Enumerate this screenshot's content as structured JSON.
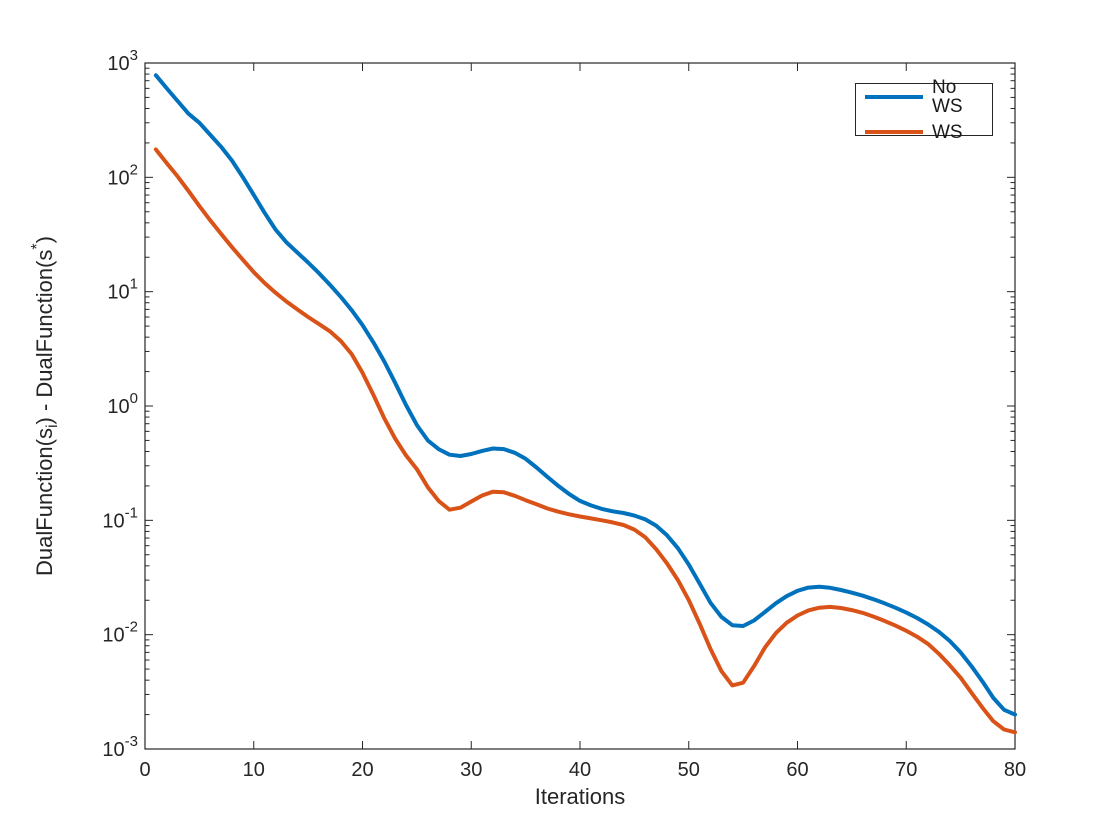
{
  "figure": {
    "background": "#ffffff"
  },
  "chart_data": {
    "type": "line",
    "title": "",
    "xlabel": "Iterations",
    "ylabel_plain": "DualFunction(s_i) - DualFunction(s*)",
    "ylabel_parts": [
      {
        "t": "DualFunction(s",
        "style": "normal"
      },
      {
        "t": "i",
        "style": "sub"
      },
      {
        "t": ") - DualFunction(s",
        "style": "normal"
      },
      {
        "t": "*",
        "style": "sup"
      },
      {
        "t": ")",
        "style": "normal"
      }
    ],
    "xlim": [
      0,
      80
    ],
    "xticks": [
      0,
      10,
      20,
      30,
      40,
      50,
      60,
      70,
      80
    ],
    "yscale": "log",
    "ylim": [
      0.001,
      1000
    ],
    "ytick_exponents": [
      3,
      2,
      1,
      0,
      -1,
      -2,
      -3
    ],
    "grid": false,
    "axis_color": "#262626",
    "line_width": 4,
    "legend": {
      "position": "northeast",
      "items": [
        {
          "label": "No WS",
          "color": "#0072BD"
        },
        {
          "label": "WS",
          "color": "#D95319"
        }
      ]
    },
    "x": [
      1,
      2,
      3,
      4,
      5,
      6,
      7,
      8,
      9,
      10,
      11,
      12,
      13,
      14,
      15,
      16,
      17,
      18,
      19,
      20,
      21,
      22,
      23,
      24,
      25,
      26,
      27,
      28,
      29,
      30,
      31,
      32,
      33,
      34,
      35,
      36,
      37,
      38,
      39,
      40,
      41,
      42,
      43,
      44,
      45,
      46,
      47,
      48,
      49,
      50,
      51,
      52,
      53,
      54,
      55,
      56,
      57,
      58,
      59,
      60,
      61,
      62,
      63,
      64,
      65,
      66,
      67,
      68,
      69,
      70,
      71,
      72,
      73,
      74,
      75,
      76,
      77,
      78,
      79,
      80
    ],
    "series": [
      {
        "name": "No WS",
        "color": "#0072BD",
        "values": [
          780,
          600,
          465,
          360,
          300,
          235,
          185,
          140,
          100,
          70,
          49,
          35,
          27,
          22,
          18,
          14.5,
          11.5,
          9.0,
          6.9,
          5.1,
          3.6,
          2.45,
          1.6,
          1.02,
          0.68,
          0.5,
          0.42,
          0.375,
          0.365,
          0.38,
          0.405,
          0.425,
          0.42,
          0.39,
          0.345,
          0.29,
          0.24,
          0.2,
          0.17,
          0.148,
          0.135,
          0.126,
          0.12,
          0.116,
          0.11,
          0.102,
          0.09,
          0.074,
          0.057,
          0.041,
          0.028,
          0.019,
          0.0143,
          0.0121,
          0.0119,
          0.0133,
          0.0158,
          0.0188,
          0.0217,
          0.0242,
          0.0258,
          0.0263,
          0.0257,
          0.0246,
          0.0233,
          0.0219,
          0.0204,
          0.0188,
          0.0172,
          0.0156,
          0.014,
          0.0123,
          0.0106,
          0.0088,
          0.007,
          0.0053,
          0.0039,
          0.0028,
          0.0022,
          0.002
        ]
      },
      {
        "name": "WS",
        "color": "#D95319",
        "values": [
          175,
          133,
          102,
          76,
          56,
          42,
          32,
          24.5,
          19,
          14.8,
          11.9,
          9.8,
          8.2,
          7.0,
          6.0,
          5.2,
          4.5,
          3.7,
          2.85,
          1.95,
          1.25,
          0.78,
          0.52,
          0.37,
          0.28,
          0.195,
          0.148,
          0.124,
          0.129,
          0.146,
          0.165,
          0.178,
          0.176,
          0.164,
          0.15,
          0.138,
          0.127,
          0.119,
          0.113,
          0.108,
          0.104,
          0.1,
          0.096,
          0.091,
          0.083,
          0.071,
          0.056,
          0.042,
          0.03,
          0.02,
          0.0125,
          0.0075,
          0.0048,
          0.0036,
          0.0038,
          0.0053,
          0.0077,
          0.0103,
          0.0127,
          0.0147,
          0.0163,
          0.0172,
          0.0175,
          0.0171,
          0.0164,
          0.0155,
          0.0144,
          0.0132,
          0.012,
          0.0108,
          0.0096,
          0.0083,
          0.0068,
          0.0054,
          0.0042,
          0.0031,
          0.0023,
          0.00175,
          0.00148,
          0.0014
        ]
      }
    ]
  }
}
